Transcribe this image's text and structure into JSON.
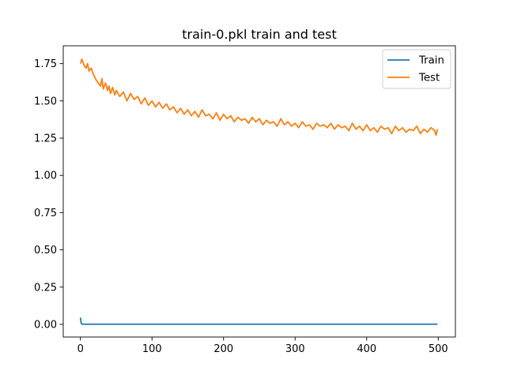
{
  "chart_data": {
    "type": "line",
    "title": "train-0.pkl train and test",
    "xlabel": "",
    "ylabel": "",
    "xlim": [
      -24,
      524
    ],
    "ylim": [
      -0.085,
      1.87
    ],
    "x_ticks": [
      0,
      100,
      200,
      300,
      400,
      500
    ],
    "y_ticks": [
      0.0,
      0.25,
      0.5,
      0.75,
      1.0,
      1.25,
      1.5,
      1.75
    ],
    "y_tick_labels": [
      "0.00",
      "0.25",
      "0.50",
      "0.75",
      "1.00",
      "1.25",
      "1.50",
      "1.75"
    ],
    "grid": false,
    "legend_position": "top-right",
    "series": [
      {
        "name": "Train",
        "color": "#1f77b4",
        "x": [
          0,
          1,
          2,
          5,
          10,
          20,
          50,
          100,
          200,
          300,
          400,
          499
        ],
        "y": [
          0.045,
          0.01,
          0.002,
          0.001,
          0.001,
          0.001,
          0.001,
          0.001,
          0.001,
          0.001,
          0.001,
          0.001
        ]
      },
      {
        "name": "Test",
        "color": "#ff7f0e",
        "x": [
          0,
          2,
          5,
          8,
          10,
          12,
          15,
          18,
          20,
          22,
          25,
          28,
          30,
          32,
          35,
          38,
          40,
          42,
          45,
          48,
          50,
          55,
          60,
          65,
          70,
          75,
          80,
          85,
          90,
          95,
          100,
          105,
          110,
          115,
          120,
          125,
          130,
          135,
          140,
          145,
          150,
          155,
          160,
          165,
          170,
          175,
          180,
          185,
          190,
          195,
          200,
          205,
          210,
          215,
          220,
          225,
          230,
          235,
          240,
          245,
          250,
          255,
          260,
          265,
          270,
          275,
          280,
          285,
          290,
          295,
          300,
          305,
          310,
          315,
          320,
          325,
          330,
          335,
          340,
          345,
          350,
          355,
          360,
          365,
          370,
          375,
          380,
          385,
          390,
          395,
          400,
          405,
          410,
          415,
          420,
          425,
          430,
          435,
          440,
          445,
          450,
          455,
          460,
          465,
          470,
          475,
          480,
          485,
          490,
          495,
          497,
          499
        ],
        "y": [
          1.75,
          1.78,
          1.74,
          1.72,
          1.75,
          1.7,
          1.72,
          1.68,
          1.66,
          1.64,
          1.62,
          1.6,
          1.65,
          1.58,
          1.62,
          1.57,
          1.6,
          1.55,
          1.59,
          1.54,
          1.57,
          1.53,
          1.56,
          1.5,
          1.55,
          1.51,
          1.53,
          1.48,
          1.52,
          1.47,
          1.5,
          1.46,
          1.49,
          1.45,
          1.48,
          1.44,
          1.46,
          1.42,
          1.45,
          1.41,
          1.44,
          1.4,
          1.43,
          1.39,
          1.44,
          1.4,
          1.41,
          1.38,
          1.42,
          1.37,
          1.41,
          1.38,
          1.4,
          1.36,
          1.39,
          1.37,
          1.38,
          1.35,
          1.39,
          1.36,
          1.38,
          1.34,
          1.37,
          1.35,
          1.36,
          1.33,
          1.38,
          1.34,
          1.36,
          1.33,
          1.35,
          1.32,
          1.36,
          1.33,
          1.34,
          1.31,
          1.35,
          1.33,
          1.34,
          1.32,
          1.35,
          1.31,
          1.34,
          1.32,
          1.33,
          1.3,
          1.35,
          1.31,
          1.33,
          1.3,
          1.34,
          1.3,
          1.32,
          1.29,
          1.33,
          1.31,
          1.32,
          1.28,
          1.33,
          1.3,
          1.32,
          1.29,
          1.31,
          1.3,
          1.33,
          1.28,
          1.31,
          1.29,
          1.32,
          1.3,
          1.27,
          1.31
        ]
      }
    ]
  }
}
